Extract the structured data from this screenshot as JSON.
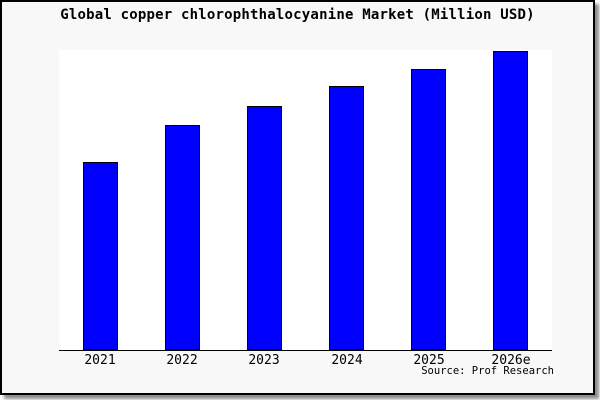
{
  "chart_data": {
    "type": "bar",
    "title": "Global copper chlorophthalocyanine Market (Million USD)",
    "categories": [
      "2021",
      "2022",
      "2023",
      "2024",
      "2025",
      "2026e"
    ],
    "values": [
      62.8,
      74.9,
      81.2,
      88.0,
      93.7,
      99.7
    ],
    "xlabel": "",
    "ylabel": "",
    "ylim": [
      0,
      100
    ],
    "y_axis_labels_visible": false,
    "grid": false,
    "legend_position": "none",
    "values_estimated_from_bar_heights": true,
    "bar_color": "#0000ff",
    "bar_border_color": "#000000",
    "plot_background": "#ffffff",
    "page_background": "#f8f8f8",
    "frame_border_color": "#000000"
  },
  "source": {
    "label": "Source: Prof Research"
  }
}
